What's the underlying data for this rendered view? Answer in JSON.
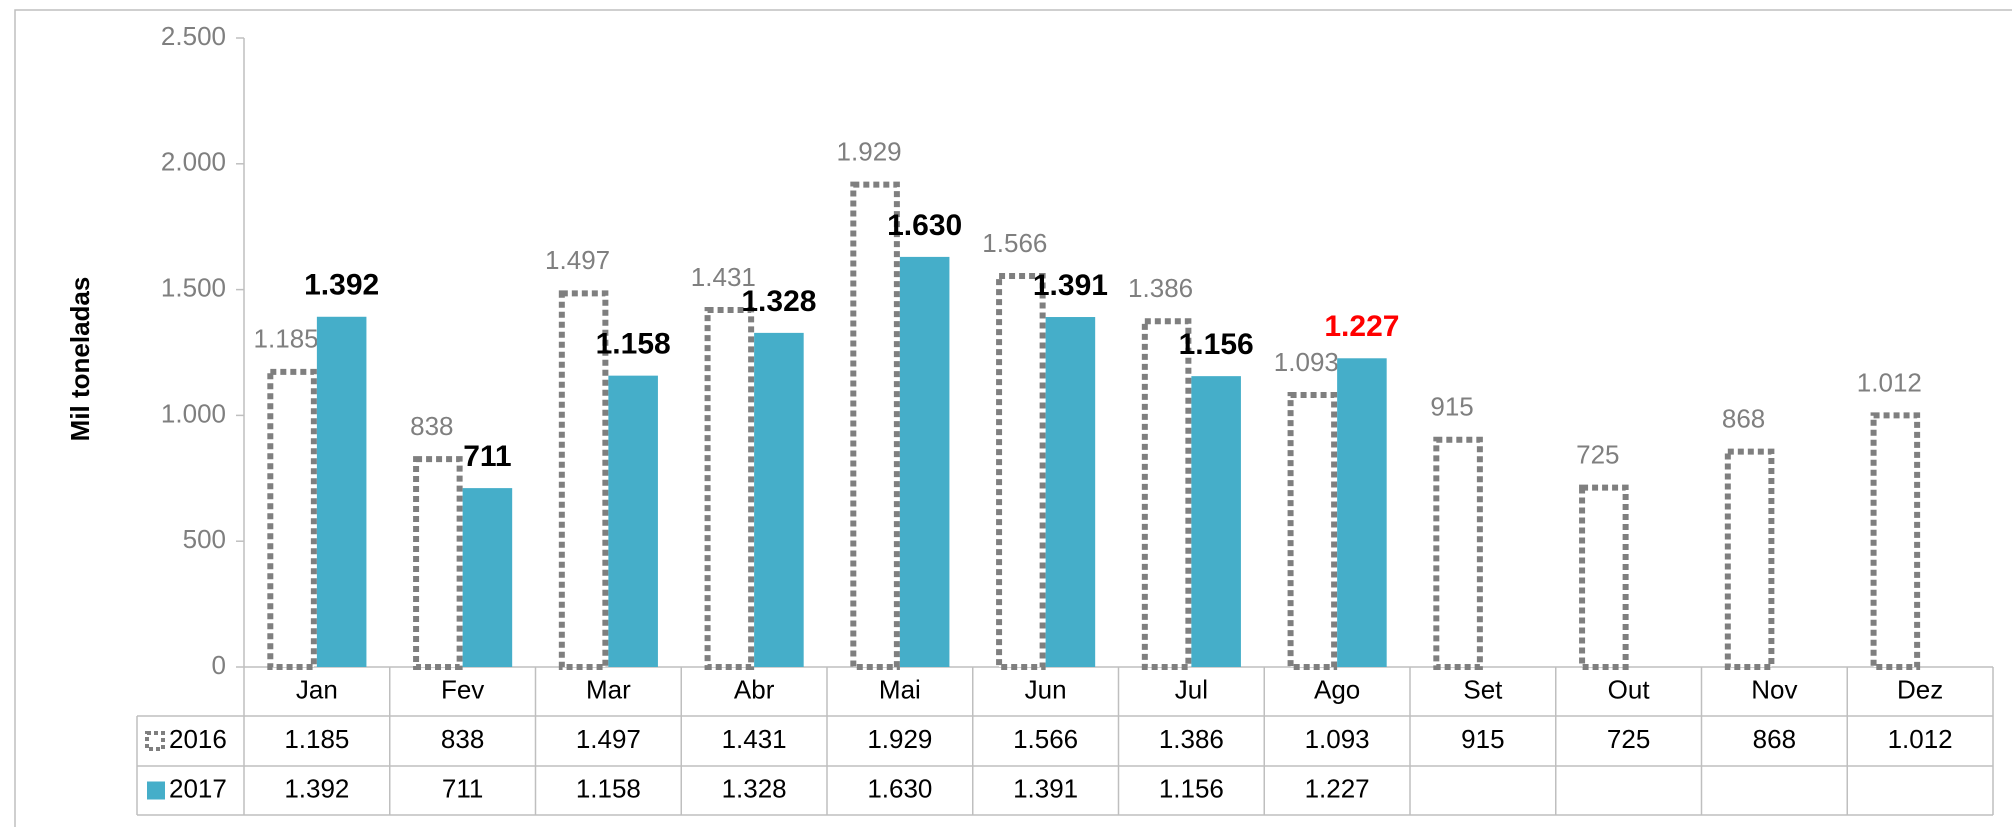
{
  "chart_data": {
    "type": "bar",
    "y_label": "Mil toneladas",
    "categories": [
      "Jan",
      "Fev",
      "Mar",
      "Abr",
      "Mai",
      "Jun",
      "Jul",
      "Ago",
      "Set",
      "Out",
      "Nov",
      "Dez"
    ],
    "series": [
      {
        "name": "2016",
        "color": "#7f7f7f",
        "style": "dashed-outline",
        "label_color": "#7f7f7f",
        "values": [
          1185,
          838,
          1497,
          1431,
          1929,
          1566,
          1386,
          1093,
          915,
          725,
          868,
          1012
        ],
        "value_labels": [
          "1.185",
          "838",
          "1.497",
          "1.431",
          "1.929",
          "1.566",
          "1.386",
          "1.093",
          "915",
          "725",
          "868",
          "1.012"
        ]
      },
      {
        "name": "2017",
        "color": "#45aec9",
        "style": "filled",
        "values": [
          1392,
          711,
          1158,
          1328,
          1630,
          1391,
          1156,
          1227,
          null,
          null,
          null,
          null
        ],
        "value_labels": [
          "1.392",
          "711",
          "1.158",
          "1.328",
          "1.630",
          "1.391",
          "1.156",
          "1.227",
          null,
          null,
          null,
          null
        ],
        "value_label_colors": [
          "#000000",
          "#000000",
          "#000000",
          "#000000",
          "#000000",
          "#000000",
          "#000000",
          "#ff0000",
          null,
          null,
          null,
          null
        ]
      }
    ],
    "ylim": [
      0,
      2500
    ],
    "yticks": [
      0,
      500,
      {
        "value": 1000,
        "label": "1.000"
      },
      {
        "value": 1500,
        "label": "1.500"
      },
      {
        "value": 2000,
        "label": "2.000"
      },
      {
        "value": 2500,
        "label": "2.500"
      }
    ],
    "data_table": true
  }
}
